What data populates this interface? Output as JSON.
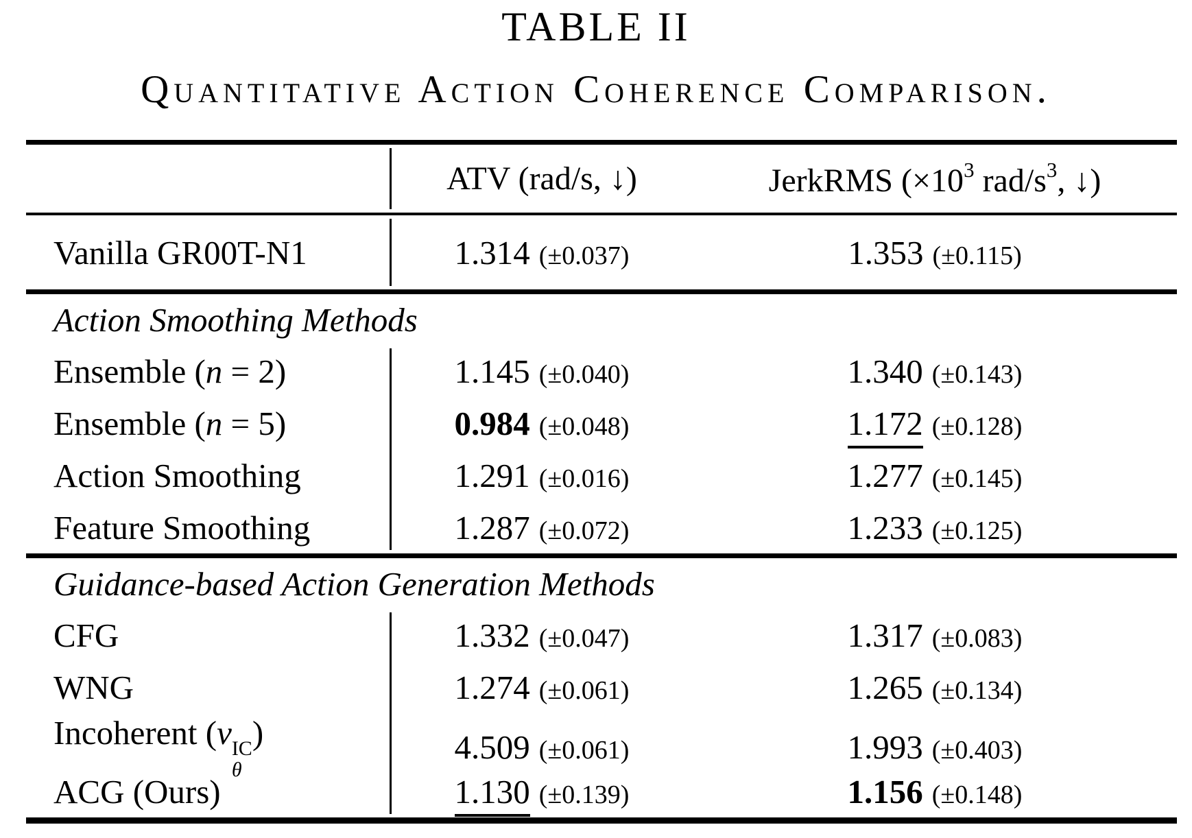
{
  "title": "TABLE II",
  "caption": "Quantitative Action Coherence Comparison.",
  "header": {
    "method_col": "",
    "atv": "ATV (rad/s, ↓)",
    "jerk": {
      "pre": "JerkRMS (×10",
      "exp1": "3",
      "mid": " rad/s",
      "exp2": "3",
      "post": ", ↓)"
    }
  },
  "baseline_row": {
    "method": "Vanilla GR00T-N1",
    "atv": "1.314",
    "atv_err": "(±0.037)",
    "atv_style": "normal",
    "jerk": "1.353",
    "jerk_err": "(±0.115)",
    "jerk_style": "normal"
  },
  "sections": [
    {
      "title": "Action Smoothing Methods",
      "rows": [
        {
          "method_pre": "Ensemble (",
          "method_var": "n",
          "method_post": " = 2)",
          "atv": "1.145",
          "atv_err": "(±0.040)",
          "atv_style": "normal",
          "jerk": "1.340",
          "jerk_err": "(±0.143)",
          "jerk_style": "normal"
        },
        {
          "method_pre": "Ensemble (",
          "method_var": "n",
          "method_post": " = 5)",
          "atv": "0.984",
          "atv_err": "(±0.048)",
          "atv_style": "bold",
          "jerk": "1.172",
          "jerk_err": "(±0.128)",
          "jerk_style": "underline"
        },
        {
          "method": "Action Smoothing",
          "atv": "1.291",
          "atv_err": "(±0.016)",
          "atv_style": "normal",
          "jerk": "1.277",
          "jerk_err": "(±0.145)",
          "jerk_style": "normal"
        },
        {
          "method": "Feature Smoothing",
          "atv": "1.287",
          "atv_err": "(±0.072)",
          "atv_style": "normal",
          "jerk": "1.233",
          "jerk_err": "(±0.125)",
          "jerk_style": "normal"
        }
      ]
    },
    {
      "title": "Guidance-based Action Generation Methods",
      "rows": [
        {
          "method": "CFG",
          "atv": "1.332",
          "atv_err": "(±0.047)",
          "atv_style": "normal",
          "jerk": "1.317",
          "jerk_err": "(±0.083)",
          "jerk_style": "normal"
        },
        {
          "method": "WNG",
          "atv": "1.274",
          "atv_err": "(±0.061)",
          "atv_style": "normal",
          "jerk": "1.265",
          "jerk_err": "(±0.134)",
          "jerk_style": "normal"
        },
        {
          "method_pre": "Incoherent (",
          "method_var": "v",
          "method_sup": "IC",
          "method_sub": "θ",
          "method_post": ")",
          "atv": "4.509",
          "atv_err": "(±0.061)",
          "atv_style": "normal",
          "jerk": "1.993",
          "jerk_err": "(±0.403)",
          "jerk_style": "normal"
        },
        {
          "method": "ACG (Ours)",
          "atv": "1.130",
          "atv_err": "(±0.139)",
          "atv_style": "underline",
          "jerk": "1.156",
          "jerk_err": "(±0.148)",
          "jerk_style": "bold"
        }
      ]
    }
  ]
}
